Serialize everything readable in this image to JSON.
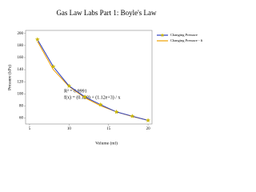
{
  "chart_data": {
    "type": "line",
    "title": "Gas Law Labs Part 1: Boyle's Law",
    "x_label": "Volume (ml)",
    "y_label": "Pressure (kPa)",
    "x": [
      6,
      8,
      10,
      12,
      14,
      16,
      18,
      20
    ],
    "series": [
      {
        "name": "Changing Pressure",
        "color": "#2e3fbf",
        "marker_color": "#c8b400",
        "values": [
          190,
          145,
          113,
          95,
          82,
          70,
          63,
          56
        ]
      },
      {
        "name": "Changing Pressure - fi",
        "color": "#f0a000",
        "values": [
          186.8,
          140.1,
          112.1,
          93.5,
          80.1,
          70.1,
          62.4,
          56.1
        ]
      }
    ],
    "annotations": [
      "R² = 0.9991",
      "f(x) = (0.129) + (1.12e+3) / x"
    ],
    "xlim": [
      4.5,
      20.5
    ],
    "xticks": [
      5,
      10,
      15,
      20
    ],
    "ylim": [
      50,
      205
    ],
    "yticks": [
      60,
      80,
      100,
      120,
      140,
      160,
      180,
      200
    ],
    "legend": "right"
  }
}
